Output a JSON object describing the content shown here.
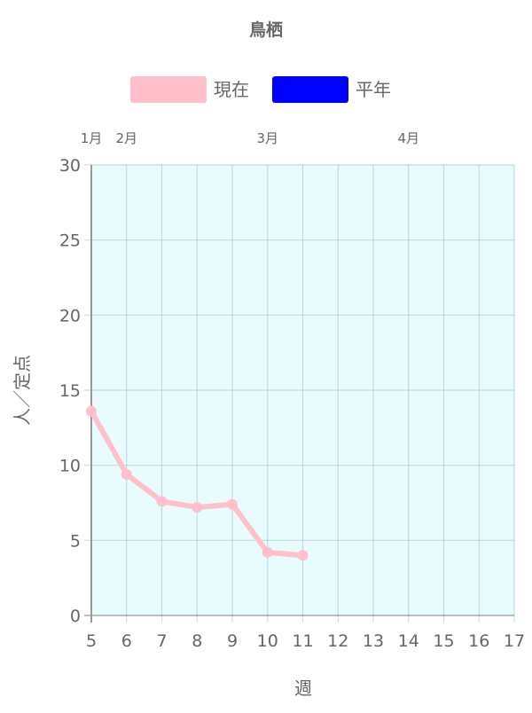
{
  "chart_data": {
    "type": "line",
    "title": "鳥栖",
    "xlabel": "週",
    "ylabel": "人／定点",
    "xlim": [
      5,
      17
    ],
    "ylim": [
      0,
      30
    ],
    "x_ticks": [
      5,
      6,
      7,
      8,
      9,
      10,
      11,
      12,
      13,
      14,
      15,
      16,
      17
    ],
    "y_ticks": [
      0,
      5,
      10,
      15,
      20,
      25,
      30
    ],
    "grid": true,
    "plot_background": "#e8fcfd",
    "legend_position": "top",
    "month_labels": [
      {
        "label": "1月",
        "week": 5
      },
      {
        "label": "2月",
        "week": 6
      },
      {
        "label": "3月",
        "week": 10
      },
      {
        "label": "4月",
        "week": 14
      }
    ],
    "series": [
      {
        "name": "現在",
        "color": "#ffc0cb",
        "x": [
          5,
          6,
          7,
          8,
          9,
          10,
          11
        ],
        "values": [
          13.6,
          9.4,
          7.6,
          7.2,
          7.4,
          4.2,
          4.0
        ]
      },
      {
        "name": "平年",
        "color": "#0000ff",
        "x": [],
        "values": []
      }
    ]
  }
}
